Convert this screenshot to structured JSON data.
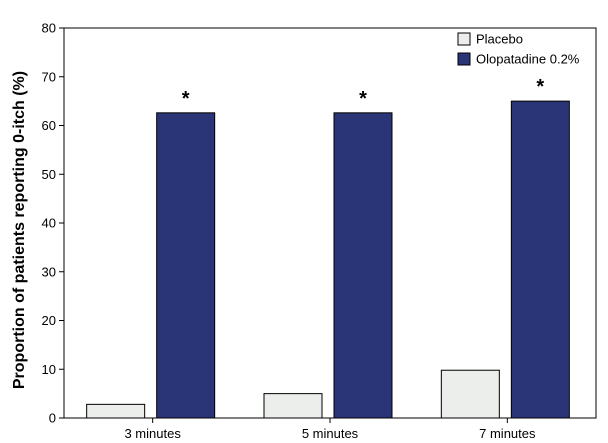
{
  "chart_data": {
    "type": "bar",
    "ylabel": "Proportion of patients reporting 0-itch (%)",
    "xlabel": "",
    "ylim": [
      0,
      80
    ],
    "yticks": [
      0,
      10,
      20,
      30,
      40,
      50,
      60,
      70,
      80
    ],
    "categories": [
      "3 minutes",
      "5 minutes",
      "7 minutes"
    ],
    "series": [
      {
        "name": "Placebo",
        "values": [
          2.8,
          5.0,
          9.8
        ],
        "color": "#eceeec"
      },
      {
        "name": "Olopatadine 0.2%",
        "values": [
          62.6,
          62.6,
          65.0
        ],
        "color": "#2a3577"
      }
    ],
    "annotations": [
      "*",
      "*",
      "*"
    ],
    "legend_position": "top-right",
    "grid": false
  }
}
